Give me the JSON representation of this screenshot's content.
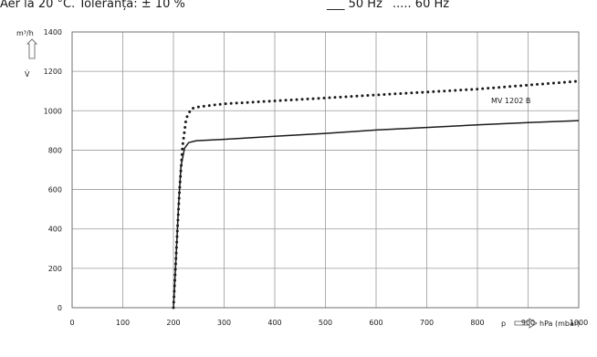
{
  "header": {
    "text": "Aer la 20 °C. Toleranța: ± 10 %",
    "legend_50": "___ 50 Hz",
    "legend_60": "..... 60 Hz"
  },
  "chart_data": {
    "type": "line",
    "title": "",
    "xlabel": "p → hPa (mbar)",
    "xlabel_left": "p",
    "xlabel_right": "hPa (mbar)",
    "ylabel_unit": "m³/h",
    "ylabel_symbol": "V̇",
    "xlim": [
      0,
      1000
    ],
    "ylim": [
      0,
      1400
    ],
    "x_ticks": [
      0,
      100,
      200,
      300,
      400,
      500,
      600,
      700,
      800,
      900,
      1000
    ],
    "y_ticks": [
      0,
      200,
      400,
      600,
      800,
      1000,
      1200,
      1400
    ],
    "grid": true,
    "annotation": "MV 1202 B",
    "series": [
      {
        "name": "50 Hz",
        "style": "solid",
        "color": "#1a1a1a",
        "points": [
          [
            200,
            0
          ],
          [
            205,
            250
          ],
          [
            210,
            520
          ],
          [
            215,
            720
          ],
          [
            222,
            810
          ],
          [
            230,
            838
          ],
          [
            245,
            848
          ],
          [
            300,
            855
          ],
          [
            400,
            870
          ],
          [
            500,
            885
          ],
          [
            600,
            902
          ],
          [
            700,
            915
          ],
          [
            800,
            928
          ],
          [
            900,
            940
          ],
          [
            1000,
            950
          ]
        ]
      },
      {
        "name": "60 Hz",
        "style": "dotted",
        "color": "#1a1a1a",
        "points": [
          [
            200,
            0
          ],
          [
            206,
            300
          ],
          [
            212,
            600
          ],
          [
            218,
            820
          ],
          [
            225,
            960
          ],
          [
            235,
            1010
          ],
          [
            250,
            1020
          ],
          [
            300,
            1035
          ],
          [
            400,
            1050
          ],
          [
            500,
            1065
          ],
          [
            600,
            1080
          ],
          [
            700,
            1095
          ],
          [
            800,
            1110
          ],
          [
            900,
            1130
          ],
          [
            1000,
            1150
          ]
        ]
      }
    ]
  }
}
